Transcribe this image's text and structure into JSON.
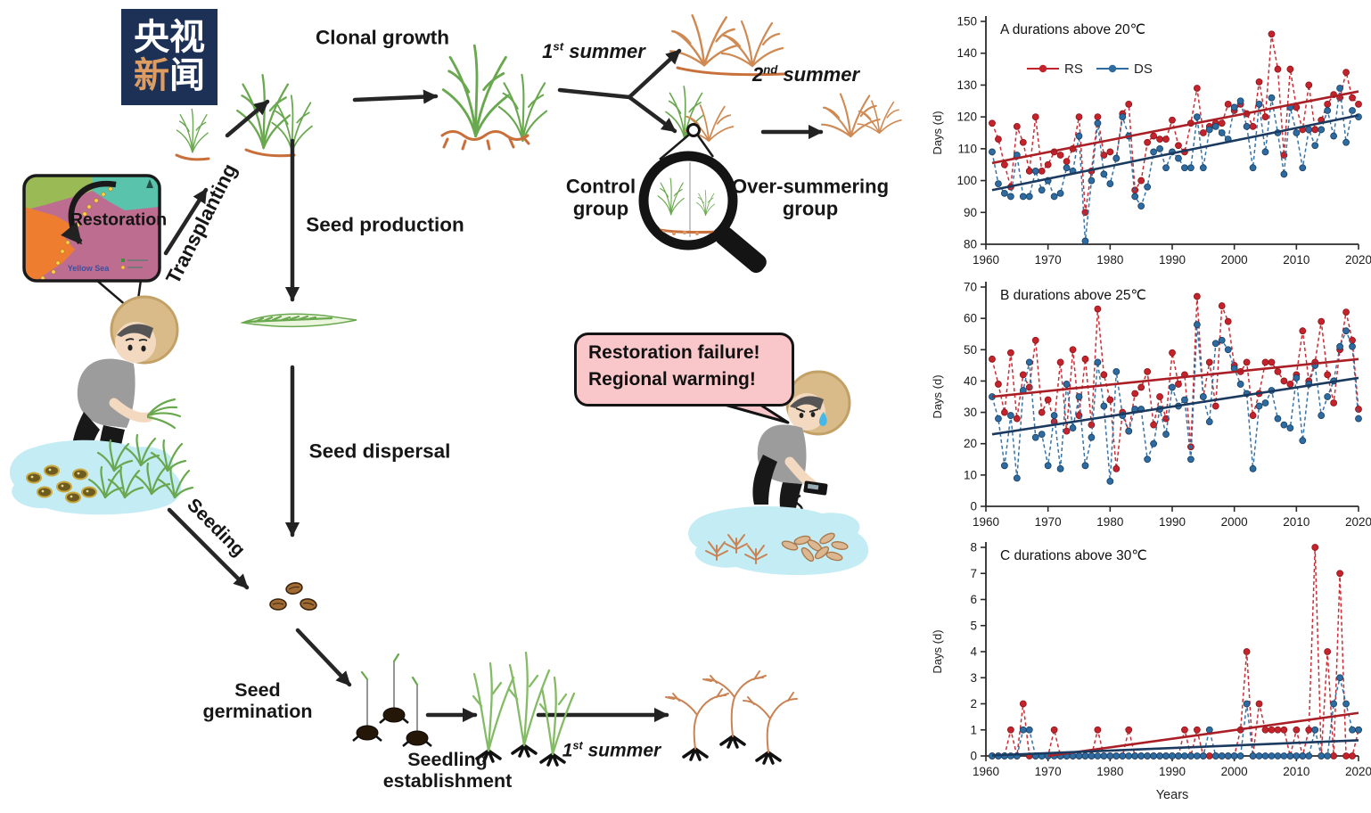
{
  "logo": {
    "line1": "央视",
    "line2_a": "新",
    "line2_b": "闻"
  },
  "diagram": {
    "clonal_growth": "Clonal growth",
    "first_summer": {
      "num": "1",
      "ord": "st",
      "rest": " summer"
    },
    "second_summer": {
      "num": "2",
      "ord": "nd",
      "rest": " summer"
    },
    "transplanting": "Transplanting",
    "seed_production": "Seed production",
    "control_group": {
      "line1": "Control",
      "line2": "group"
    },
    "oversummering_group": {
      "line1": "Over-summering",
      "line2": "group"
    },
    "seed_dispersal": "Seed dispersal",
    "seeding": "Seeding",
    "seed_germination": {
      "line1": "Seed",
      "line2": "germination"
    },
    "seedling_establishment": {
      "line1": "Seedling",
      "line2": "establishment"
    },
    "first_summer_bottom": {
      "num": "1",
      "ord": "st",
      "rest": " summer"
    },
    "speech_bubble": {
      "line1": "Restoration failure!",
      "line2": "Regional warming!"
    },
    "map": {
      "label": "Restoration",
      "sea": "Yellow Sea"
    }
  },
  "chart_data": [
    {
      "type": "line",
      "panel": "A",
      "title": "durations above 20℃",
      "ylabel": "Days (d)",
      "xlabel": "",
      "ylim": [
        80,
        150
      ],
      "yticks": [
        80,
        90,
        100,
        110,
        120,
        130,
        140,
        150
      ],
      "xlim": [
        1960,
        2020
      ],
      "xticks": [
        1960,
        1970,
        1980,
        1990,
        2000,
        2010,
        2020
      ],
      "legend_labels": [
        "RS",
        "DS"
      ],
      "x_start": 1961,
      "series": [
        {
          "name": "RS",
          "color": "#c5232b",
          "stroke": "#8c1418",
          "values": [
            118,
            113,
            105,
            98,
            117,
            112,
            103,
            120,
            103,
            105,
            109,
            108,
            106,
            110,
            120,
            90,
            103,
            120,
            108,
            109,
            107,
            121,
            124,
            97,
            100,
            112,
            114,
            113,
            113,
            119,
            111,
            109,
            118,
            129,
            115,
            117,
            118,
            118,
            124,
            122,
            124,
            121,
            117,
            131,
            120,
            146,
            135,
            108,
            135,
            123,
            116,
            130,
            116,
            119,
            124,
            127,
            126,
            134,
            126,
            124
          ]
        },
        {
          "name": "DS",
          "color": "#2d6ba0",
          "stroke": "#173f63",
          "values": [
            109,
            99,
            96,
            95,
            108,
            95,
            95,
            103,
            97,
            100,
            95,
            96,
            104,
            103,
            114,
            81,
            100,
            118,
            102,
            99,
            107,
            120,
            114,
            95,
            92,
            98,
            109,
            110,
            104,
            109,
            107,
            104,
            104,
            120,
            104,
            116,
            117,
            115,
            113,
            123,
            125,
            117,
            104,
            124,
            109,
            126,
            115,
            102,
            123,
            115,
            104,
            116,
            111,
            116,
            122,
            114,
            129,
            112,
            122,
            120
          ]
        }
      ],
      "trends": [
        {
          "name": "RS trend",
          "color": "#aa1f25",
          "start": [
            1961,
            105.5
          ],
          "end": [
            2020,
            128
          ]
        },
        {
          "name": "DS trend",
          "color": "#1b3a5f",
          "start": [
            1961,
            97
          ],
          "end": [
            2020,
            120.5
          ]
        }
      ]
    },
    {
      "type": "line",
      "panel": "B",
      "title": "durations above 25℃",
      "ylabel": "Days (d)",
      "xlabel": "",
      "ylim": [
        0,
        70
      ],
      "yticks": [
        0,
        10,
        20,
        30,
        40,
        50,
        60,
        70
      ],
      "xlim": [
        1960,
        2020
      ],
      "xticks": [
        1960,
        1970,
        1980,
        1990,
        2000,
        2010,
        2020
      ],
      "x_start": 1961,
      "series": [
        {
          "name": "RS",
          "color": "#c5232b",
          "stroke": "#8c1418",
          "values": [
            47,
            39,
            30,
            49,
            28,
            42,
            38,
            53,
            30,
            34,
            27,
            46,
            24,
            50,
            29,
            47,
            26,
            63,
            42,
            34,
            12,
            30,
            24,
            36,
            38,
            43,
            26,
            35,
            28,
            49,
            39,
            42,
            19,
            67,
            35,
            46,
            32,
            64,
            59,
            45,
            43,
            46,
            29,
            36,
            46,
            46,
            43,
            40,
            39,
            42,
            56,
            40,
            46,
            59,
            42,
            33,
            50,
            62,
            53,
            31
          ]
        },
        {
          "name": "DS",
          "color": "#2d6ba0",
          "stroke": "#173f63",
          "values": [
            35,
            28,
            13,
            29,
            9,
            37,
            46,
            22,
            23,
            13,
            29,
            12,
            39,
            25,
            35,
            13,
            22,
            46,
            32,
            8,
            43,
            29,
            24,
            31,
            31,
            15,
            20,
            31,
            23,
            38,
            32,
            34,
            15,
            58,
            35,
            27,
            52,
            53,
            50,
            44,
            39,
            36,
            12,
            32,
            33,
            37,
            28,
            26,
            25,
            41,
            21,
            39,
            45,
            29,
            35,
            40,
            51,
            56,
            51,
            28
          ]
        }
      ],
      "trends": [
        {
          "name": "RS trend",
          "color": "#aa1f25",
          "start": [
            1961,
            35
          ],
          "end": [
            2020,
            47
          ]
        },
        {
          "name": "DS trend",
          "color": "#1b3a5f",
          "start": [
            1961,
            23
          ],
          "end": [
            2020,
            41
          ]
        }
      ]
    },
    {
      "type": "line",
      "panel": "C",
      "title": "durations above 30℃",
      "ylabel": "Days (d)",
      "xlabel": "Years",
      "ylim": [
        0,
        8
      ],
      "yticks": [
        0,
        1,
        2,
        3,
        4,
        5,
        6,
        7,
        8
      ],
      "xlim": [
        1960,
        2020
      ],
      "xticks": [
        1960,
        1970,
        1980,
        1990,
        2000,
        2010,
        2020
      ],
      "x_start": 1961,
      "series": [
        {
          "name": "RS",
          "color": "#c5232b",
          "stroke": "#8c1418",
          "values": [
            0,
            0,
            0,
            1,
            0,
            2,
            0,
            0,
            0,
            0,
            1,
            0,
            0,
            0,
            0,
            0,
            0,
            1,
            0,
            0,
            0,
            0,
            1,
            0,
            0,
            0,
            0,
            0,
            0,
            0,
            0,
            1,
            0,
            1,
            0,
            0,
            0,
            0,
            0,
            0,
            1,
            4,
            0,
            2,
            1,
            1,
            1,
            1,
            0,
            1,
            0,
            1,
            8,
            0,
            4,
            0,
            7,
            0,
            0,
            1
          ]
        },
        {
          "name": "DS",
          "color": "#2d6ba0",
          "stroke": "#173f63",
          "values": [
            0,
            0,
            0,
            0,
            0,
            1,
            1,
            0,
            0,
            0,
            0,
            0,
            0,
            0,
            0,
            0,
            0,
            0,
            0,
            0,
            0,
            0,
            0,
            0,
            0,
            0,
            0,
            0,
            0,
            0,
            0,
            0,
            0,
            0,
            0,
            1,
            0,
            0,
            0,
            0,
            0,
            2,
            0,
            0,
            0,
            0,
            0,
            0,
            0,
            0,
            0,
            0,
            1,
            0,
            0,
            2,
            3,
            2,
            1,
            1
          ]
        }
      ],
      "trends": [
        {
          "name": "RS trend",
          "color": "#aa1f25",
          "start": [
            1970,
            0
          ],
          "end": [
            2020,
            1.65
          ]
        },
        {
          "name": "DS trend",
          "color": "#1b3a5f",
          "start": [
            1961,
            0.02
          ],
          "end": [
            2020,
            0.6
          ]
        }
      ]
    }
  ]
}
